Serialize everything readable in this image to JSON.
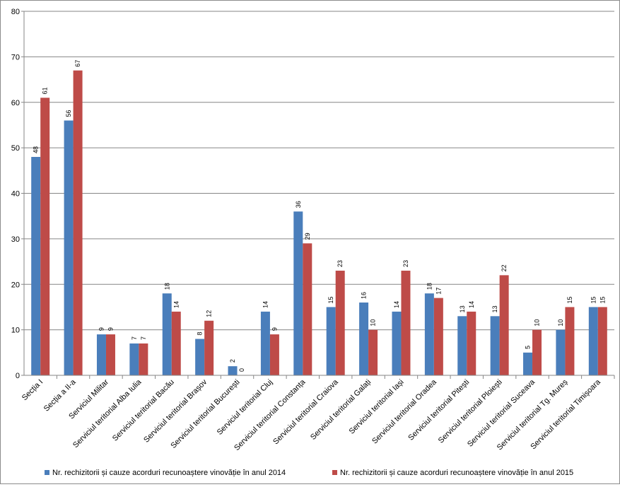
{
  "chart_data": {
    "type": "bar",
    "categories": [
      "Secția I",
      "Secția a II-a",
      "Serviciul Militar",
      "Serviciul teritorial Alba Iulia",
      "Serviciul teritorial Bacău",
      "Serviciul teritorial Brașov",
      "Serviciul teritorial București",
      "Serviciul teritorial Cluj",
      "Serviciul teritorial  Constanța",
      "Serviciul teritorial Craiova",
      "Serviciul teritorial Galați",
      "Serviciul teritorial Iași",
      "Serviciul teritorial Oradea",
      "Serviciul teritorial Pitești",
      "Serviciul teritorial Ploiești",
      "Serviciul teritorial Suceava",
      "Serviciul teritorial Tg. Mureș",
      "Serviciul teritorial Timișoara"
    ],
    "series": [
      {
        "name": "Nr. rechizitorii și cauze acorduri recunoaștere vinovăție în anul 2014",
        "color": "#4a7ebb",
        "values": [
          48,
          56,
          9,
          7,
          18,
          8,
          2,
          14,
          36,
          15,
          16,
          14,
          18,
          13,
          13,
          5,
          10,
          15
        ]
      },
      {
        "name": "Nr. rechizitorii și cauze acorduri recunoaștere vinovăție în anul 2015",
        "color": "#be4b48",
        "values": [
          61,
          67,
          9,
          7,
          14,
          12,
          0,
          9,
          29,
          23,
          10,
          23,
          17,
          14,
          22,
          10,
          15,
          15
        ]
      }
    ],
    "ylim": [
      0,
      80
    ],
    "yticks": [
      0,
      10,
      20,
      30,
      40,
      50,
      60,
      70,
      80
    ],
    "grid": true,
    "legend_position": "bottom",
    "data_labels": true
  }
}
